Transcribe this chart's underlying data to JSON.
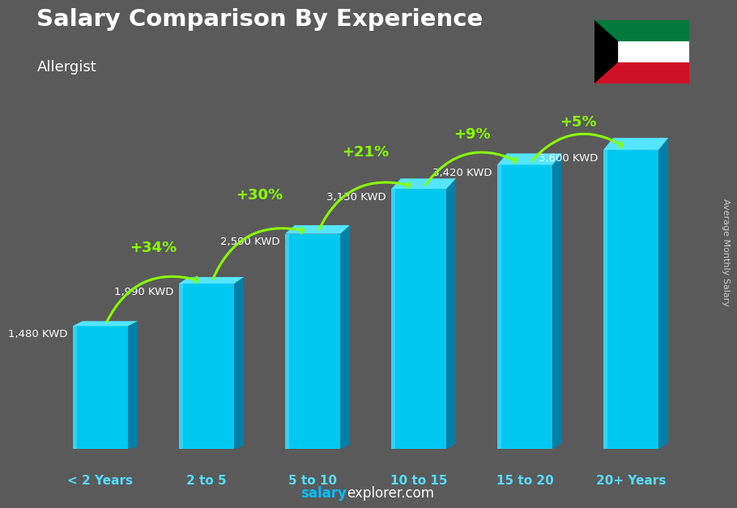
{
  "title": "Salary Comparison By Experience",
  "subtitle": "Allergist",
  "categories": [
    "< 2 Years",
    "2 to 5",
    "5 to 10",
    "10 to 15",
    "15 to 20",
    "20+ Years"
  ],
  "values": [
    1480,
    1990,
    2590,
    3130,
    3420,
    3600
  ],
  "value_labels": [
    "1,480 KWD",
    "1,990 KWD",
    "2,590 KWD",
    "3,130 KWD",
    "3,420 KWD",
    "3,600 KWD"
  ],
  "pct_labels": [
    "+34%",
    "+30%",
    "+21%",
    "+9%",
    "+5%"
  ],
  "bar_color_main": "#00C8F0",
  "bar_color_light": "#55E5FF",
  "bar_color_dark": "#0098C0",
  "bar_color_side": "#0080A8",
  "background_color": "#5a5a5a",
  "title_color": "#ffffff",
  "cat_color": "#55DDFF",
  "ylabel_text": "Average Monthly Salary",
  "ylabel_color": "#cccccc",
  "pct_color": "#88FF00",
  "value_color": "#ffffff",
  "watermark_salary_color": "#00BFFF",
  "watermark_rest_color": "#ffffff",
  "ylim_max": 4500
}
